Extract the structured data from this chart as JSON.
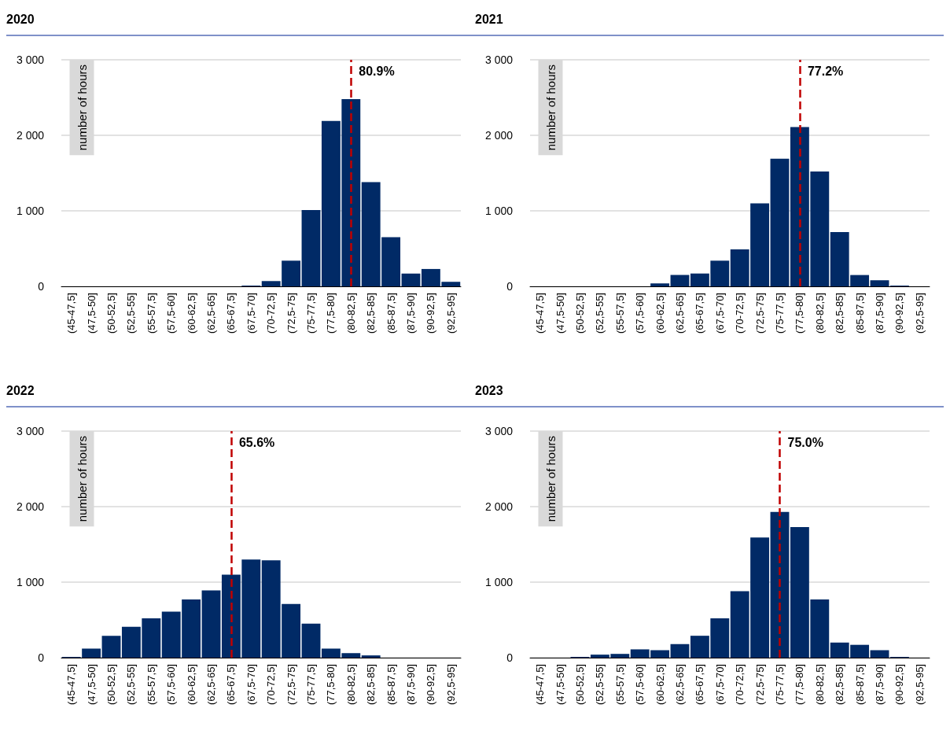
{
  "chart_data": [
    {
      "type": "bar",
      "title": "2020",
      "ylabel": "number of hours",
      "categories": [
        "(45-47,5]",
        "(47,5-50]",
        "(50-52,5]",
        "(52,5-55]",
        "(55-57,5]",
        "(57,5-60]",
        "(60-62,5]",
        "(62,5-65]",
        "(65-67,5]",
        "(67,5-70]",
        "(70-72,5]",
        "(72,5-75]",
        "(75-77,5]",
        "(77,5-80]",
        "(80-82,5]",
        "(82,5-85]",
        "(85-87,5]",
        "(87,5-90]",
        "(90-92,5]",
        "(92,5-95]"
      ],
      "values": [
        0,
        0,
        0,
        0,
        0,
        0,
        0,
        0,
        0,
        10,
        70,
        340,
        1010,
        2190,
        2480,
        1380,
        650,
        170,
        230,
        60
      ],
      "color": "#012a66",
      "ylim": [
        0,
        3000
      ],
      "yticks": [
        {
          "value": 0,
          "label": "0"
        },
        {
          "value": 1000,
          "label": "1 000"
        },
        {
          "value": 2000,
          "label": "2 000"
        },
        {
          "value": 3000,
          "label": "3 000"
        }
      ],
      "grid": "y",
      "ref_lines": [
        {
          "axis": "x",
          "value": "(80-82,5]",
          "label": "80.9%",
          "color": "#c00000",
          "line_style": "dashed"
        }
      ]
    },
    {
      "type": "bar",
      "title": "2021",
      "ylabel": "number of hours",
      "categories": [
        "(45-47,5]",
        "(47,5-50]",
        "(50-52,5]",
        "(52,5-55]",
        "(55-57,5]",
        "(57,5-60]",
        "(60-62,5]",
        "(62,5-65]",
        "(65-67,5]",
        "(67,5-70]",
        "(70-72,5]",
        "(72,5-75]",
        "(75-77,5]",
        "(77,5-80]",
        "(80-82,5]",
        "(82,5-85]",
        "(85-87,5]",
        "(87,5-90]",
        "(90-92,5]",
        "(92,5-95]"
      ],
      "values": [
        0,
        0,
        0,
        0,
        0,
        0,
        40,
        150,
        170,
        340,
        490,
        1100,
        1690,
        2110,
        1520,
        720,
        150,
        80,
        10,
        0
      ],
      "color": "#012a66",
      "ylim": [
        0,
        3000
      ],
      "yticks": [
        {
          "value": 0,
          "label": "0"
        },
        {
          "value": 1000,
          "label": "1 000"
        },
        {
          "value": 2000,
          "label": "2 000"
        },
        {
          "value": 3000,
          "label": "3 000"
        }
      ],
      "grid": "y",
      "ref_lines": [
        {
          "axis": "x",
          "value": "(77,5-80]",
          "label": "77.2%",
          "color": "#c00000",
          "line_style": "dashed"
        }
      ]
    },
    {
      "type": "bar",
      "title": "2022",
      "ylabel": "number of hours",
      "categories": [
        "(45-47,5]",
        "(47,5-50]",
        "(50-52,5]",
        "(52,5-55]",
        "(55-57,5]",
        "(57,5-60]",
        "(60-62,5]",
        "(62,5-65]",
        "(65-67,5]",
        "(67,5-70]",
        "(70-72,5]",
        "(72,5-75]",
        "(75-77,5]",
        "(77,5-80]",
        "(80-82,5]",
        "(82,5-85]",
        "(85-87,5]",
        "(87,5-90]",
        "(90-92,5]",
        "(92,5-95]"
      ],
      "values": [
        10,
        120,
        290,
        410,
        520,
        610,
        770,
        890,
        1100,
        1300,
        1290,
        710,
        450,
        120,
        60,
        30,
        0,
        0,
        0,
        0
      ],
      "color": "#012a66",
      "ylim": [
        0,
        3000
      ],
      "yticks": [
        {
          "value": 0,
          "label": "0"
        },
        {
          "value": 1000,
          "label": "1 000"
        },
        {
          "value": 2000,
          "label": "2 000"
        },
        {
          "value": 3000,
          "label": "3 000"
        }
      ],
      "grid": "y",
      "ref_lines": [
        {
          "axis": "x",
          "value": "(65-67,5]",
          "label": "65.6%",
          "color": "#c00000",
          "line_style": "dashed"
        }
      ]
    },
    {
      "type": "bar",
      "title": "2023",
      "ylabel": "number of hours",
      "categories": [
        "(45-47,5]",
        "(47,5-50]",
        "(50-52,5]",
        "(52,5-55]",
        "(55-57,5]",
        "(57,5-60]",
        "(60-62,5]",
        "(62,5-65]",
        "(65-67,5]",
        "(67,5-70]",
        "(70-72,5]",
        "(72,5-75]",
        "(75-77,5]",
        "(77,5-80]",
        "(80-82,5]",
        "(82,5-85]",
        "(85-87,5]",
        "(87,5-90]",
        "(90-92,5]",
        "(92,5-95]"
      ],
      "values": [
        0,
        0,
        10,
        40,
        50,
        110,
        100,
        180,
        290,
        520,
        880,
        1590,
        1930,
        1730,
        770,
        200,
        170,
        100,
        10,
        0
      ],
      "color": "#012a66",
      "ylim": [
        0,
        3000
      ],
      "yticks": [
        {
          "value": 0,
          "label": "0"
        },
        {
          "value": 1000,
          "label": "1 000"
        },
        {
          "value": 2000,
          "label": "2 000"
        },
        {
          "value": 3000,
          "label": "3 000"
        }
      ],
      "grid": "y",
      "ref_lines": [
        {
          "axis": "x",
          "value": "(75-77,5]",
          "label": "75.0%",
          "color": "#c00000",
          "line_style": "dashed"
        }
      ]
    }
  ]
}
